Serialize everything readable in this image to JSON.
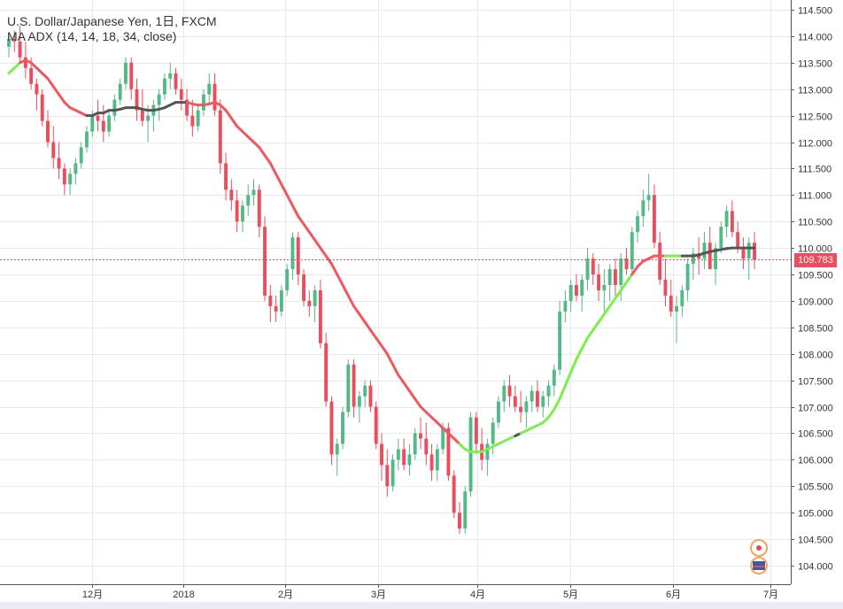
{
  "chart_data": {
    "type": "candlestick",
    "title": "U.S. Dollar/Japanese Yen, 1日, FXCM",
    "indicator": "MA ADX (14, 14, 18, 34, close)",
    "last_price": "109.783",
    "ylim": [
      103.5,
      114.6
    ],
    "yticks": [
      "114.500",
      "114.000",
      "113.500",
      "113.000",
      "112.500",
      "112.000",
      "111.500",
      "111.000",
      "110.500",
      "110.000",
      "109.500",
      "109.000",
      "108.500",
      "108.000",
      "107.500",
      "107.000",
      "106.500",
      "106.000",
      "105.500",
      "105.000",
      "104.500",
      "104.000"
    ],
    "xticks": [
      "12月",
      "2018",
      "2月",
      "3月",
      "4月",
      "5月",
      "6月",
      "7月"
    ],
    "colors": {
      "up": "#53b987",
      "down": "#eb4d5c",
      "ma_down": "#f0575f",
      "ma_up": "#7cf04a",
      "ma_flat": "#555555",
      "price_line": "#eb4d5c",
      "grid": "#e6e9ee"
    },
    "candles": [
      [
        113.8,
        114.0,
        113.6,
        113.95
      ],
      [
        113.95,
        114.1,
        113.7,
        113.9
      ],
      [
        113.9,
        114.2,
        113.5,
        113.6
      ],
      [
        113.6,
        113.9,
        113.2,
        113.4
      ],
      [
        113.4,
        113.6,
        113.0,
        113.1
      ],
      [
        113.1,
        113.2,
        112.6,
        112.9
      ],
      [
        112.9,
        113.0,
        112.3,
        112.4
      ],
      [
        112.4,
        112.6,
        111.9,
        112.0
      ],
      [
        112.0,
        112.3,
        111.5,
        111.7
      ],
      [
        111.7,
        112.0,
        111.3,
        111.5
      ],
      [
        111.5,
        111.6,
        111.0,
        111.2
      ],
      [
        111.2,
        111.5,
        111.0,
        111.4
      ],
      [
        111.4,
        111.7,
        111.2,
        111.6
      ],
      [
        111.6,
        112.0,
        111.5,
        111.9
      ],
      [
        111.9,
        112.3,
        111.8,
        112.2
      ],
      [
        112.2,
        112.6,
        112.1,
        112.5
      ],
      [
        112.5,
        112.8,
        112.2,
        112.4
      ],
      [
        112.4,
        112.7,
        112.0,
        112.2
      ],
      [
        112.2,
        112.6,
        112.1,
        112.5
      ],
      [
        112.5,
        112.9,
        112.4,
        112.8
      ],
      [
        112.8,
        113.2,
        112.7,
        113.1
      ],
      [
        113.1,
        113.6,
        113.0,
        113.5
      ],
      [
        113.5,
        113.6,
        112.8,
        113.0
      ],
      [
        113.0,
        113.2,
        112.4,
        112.6
      ],
      [
        112.6,
        113.0,
        112.3,
        112.4
      ],
      [
        112.4,
        112.7,
        112.0,
        112.5
      ],
      [
        112.5,
        112.8,
        112.2,
        112.7
      ],
      [
        112.7,
        113.0,
        112.4,
        112.9
      ],
      [
        112.9,
        113.3,
        112.8,
        113.2
      ],
      [
        113.2,
        113.5,
        113.0,
        113.3
      ],
      [
        113.3,
        113.4,
        112.9,
        113.0
      ],
      [
        113.0,
        113.2,
        112.6,
        112.8
      ],
      [
        112.8,
        113.0,
        112.4,
        112.5
      ],
      [
        112.5,
        112.8,
        112.1,
        112.3
      ],
      [
        112.3,
        112.7,
        112.2,
        112.6
      ],
      [
        112.6,
        113.0,
        112.5,
        112.9
      ],
      [
        112.9,
        113.3,
        112.7,
        113.1
      ],
      [
        113.1,
        113.3,
        112.5,
        112.6
      ],
      [
        112.6,
        112.8,
        111.4,
        111.6
      ],
      [
        111.6,
        111.8,
        110.9,
        111.1
      ],
      [
        111.1,
        111.3,
        110.7,
        110.9
      ],
      [
        110.9,
        111.1,
        110.3,
        110.5
      ],
      [
        110.5,
        110.9,
        110.3,
        110.8
      ],
      [
        110.8,
        111.2,
        110.6,
        111.0
      ],
      [
        111.0,
        111.3,
        110.8,
        111.1
      ],
      [
        111.1,
        111.2,
        110.2,
        110.4
      ],
      [
        110.4,
        110.6,
        109.0,
        109.1
      ],
      [
        109.1,
        109.3,
        108.6,
        108.9
      ],
      [
        108.9,
        109.1,
        108.6,
        108.8
      ],
      [
        108.8,
        109.3,
        108.7,
        109.2
      ],
      [
        109.2,
        109.7,
        109.1,
        109.6
      ],
      [
        109.6,
        110.3,
        109.4,
        110.2
      ],
      [
        110.2,
        110.3,
        109.3,
        109.5
      ],
      [
        109.5,
        109.6,
        108.9,
        109.0
      ],
      [
        109.0,
        109.2,
        108.7,
        108.9
      ],
      [
        108.9,
        109.3,
        108.6,
        109.2
      ],
      [
        109.2,
        109.4,
        108.1,
        108.2
      ],
      [
        108.2,
        108.4,
        107.0,
        107.1
      ],
      [
        107.1,
        107.2,
        105.9,
        106.1
      ],
      [
        106.1,
        106.4,
        105.7,
        106.3
      ],
      [
        106.3,
        107.0,
        106.2,
        106.9
      ],
      [
        106.9,
        107.9,
        106.8,
        107.8
      ],
      [
        107.8,
        107.9,
        106.8,
        107.0
      ],
      [
        107.0,
        107.3,
        106.7,
        107.2
      ],
      [
        107.2,
        107.5,
        107.0,
        107.4
      ],
      [
        107.4,
        107.5,
        106.9,
        107.0
      ],
      [
        107.0,
        107.1,
        106.2,
        106.3
      ],
      [
        106.3,
        106.5,
        105.6,
        105.9
      ],
      [
        105.9,
        106.2,
        105.3,
        105.5
      ],
      [
        105.5,
        106.1,
        105.4,
        106.0
      ],
      [
        106.0,
        106.4,
        105.8,
        106.2
      ],
      [
        106.2,
        106.4,
        105.8,
        105.9
      ],
      [
        105.9,
        106.3,
        105.7,
        106.1
      ],
      [
        106.1,
        106.6,
        106.0,
        106.5
      ],
      [
        106.5,
        106.8,
        106.2,
        106.4
      ],
      [
        106.4,
        106.7,
        105.9,
        106.1
      ],
      [
        106.1,
        106.3,
        105.6,
        105.8
      ],
      [
        105.8,
        106.3,
        105.6,
        106.2
      ],
      [
        106.2,
        106.7,
        106.1,
        106.6
      ],
      [
        106.6,
        106.7,
        105.6,
        105.7
      ],
      [
        105.7,
        105.8,
        104.9,
        105.0
      ],
      [
        105.0,
        105.2,
        104.6,
        104.7
      ],
      [
        104.7,
        105.5,
        104.6,
        105.4
      ],
      [
        105.4,
        106.9,
        105.3,
        106.8
      ],
      [
        106.8,
        106.9,
        106.1,
        106.3
      ],
      [
        106.3,
        106.6,
        105.8,
        106.0
      ],
      [
        106.0,
        106.4,
        105.7,
        106.3
      ],
      [
        106.3,
        106.8,
        106.1,
        106.7
      ],
      [
        106.7,
        107.2,
        106.6,
        107.1
      ],
      [
        107.1,
        107.5,
        106.9,
        107.4
      ],
      [
        107.4,
        107.6,
        107.0,
        107.2
      ],
      [
        107.2,
        107.4,
        106.9,
        107.0
      ],
      [
        107.0,
        107.3,
        106.7,
        106.9
      ],
      [
        106.9,
        107.2,
        106.6,
        107.1
      ],
      [
        107.1,
        107.4,
        106.9,
        107.3
      ],
      [
        107.3,
        107.5,
        106.9,
        107.0
      ],
      [
        107.0,
        107.3,
        106.8,
        107.2
      ],
      [
        107.2,
        107.5,
        107.0,
        107.4
      ],
      [
        107.4,
        107.8,
        107.2,
        107.7
      ],
      [
        107.7,
        109.0,
        107.6,
        108.8
      ],
      [
        108.8,
        109.2,
        108.6,
        109.0
      ],
      [
        109.0,
        109.4,
        108.8,
        109.3
      ],
      [
        109.3,
        109.5,
        109.0,
        109.1
      ],
      [
        109.1,
        109.5,
        108.8,
        109.4
      ],
      [
        109.4,
        110.0,
        109.2,
        109.8
      ],
      [
        109.8,
        109.9,
        109.3,
        109.5
      ],
      [
        109.5,
        109.7,
        109.0,
        109.2
      ],
      [
        109.2,
        109.6,
        108.8,
        109.3
      ],
      [
        109.3,
        109.7,
        109.0,
        109.6
      ],
      [
        109.6,
        109.8,
        109.1,
        109.3
      ],
      [
        109.3,
        109.9,
        109.0,
        109.8
      ],
      [
        109.8,
        110.0,
        109.5,
        109.6
      ],
      [
        109.6,
        110.4,
        109.5,
        110.3
      ],
      [
        110.3,
        110.7,
        110.1,
        110.6
      ],
      [
        110.6,
        111.1,
        110.4,
        110.9
      ],
      [
        110.9,
        111.4,
        110.7,
        111.0
      ],
      [
        111.0,
        111.2,
        110.0,
        110.1
      ],
      [
        110.1,
        110.3,
        109.3,
        109.4
      ],
      [
        109.4,
        109.8,
        108.9,
        109.1
      ],
      [
        109.1,
        109.4,
        108.7,
        108.8
      ],
      [
        108.8,
        109.1,
        108.2,
        108.9
      ],
      [
        108.9,
        109.3,
        108.7,
        109.2
      ],
      [
        109.2,
        109.8,
        109.0,
        109.7
      ],
      [
        109.7,
        110.0,
        109.4,
        109.9
      ],
      [
        109.9,
        110.2,
        109.5,
        109.8
      ],
      [
        109.8,
        110.3,
        109.6,
        110.1
      ],
      [
        110.1,
        110.4,
        109.7,
        109.6
      ],
      [
        109.6,
        110.1,
        109.3,
        110.0
      ],
      [
        110.0,
        110.5,
        109.9,
        110.4
      ],
      [
        110.4,
        110.8,
        110.2,
        110.7
      ],
      [
        110.7,
        110.9,
        110.2,
        110.3
      ],
      [
        110.3,
        110.5,
        109.9,
        110.0
      ],
      [
        110.0,
        110.2,
        109.6,
        109.8
      ],
      [
        109.8,
        110.2,
        109.4,
        110.1
      ],
      [
        110.1,
        110.3,
        109.6,
        109.78
      ]
    ],
    "ma": [
      113.3,
      113.4,
      113.5,
      113.55,
      113.5,
      113.4,
      113.3,
      113.2,
      113.05,
      112.9,
      112.75,
      112.65,
      112.6,
      112.55,
      112.5,
      112.5,
      112.55,
      112.55,
      112.6,
      112.6,
      112.62,
      112.65,
      112.65,
      112.65,
      112.62,
      112.6,
      112.6,
      112.62,
      112.65,
      112.7,
      112.75,
      112.75,
      112.75,
      112.72,
      112.7,
      112.7,
      112.72,
      112.75,
      112.7,
      112.6,
      112.45,
      112.3,
      112.2,
      112.1,
      112.0,
      111.9,
      111.75,
      111.6,
      111.4,
      111.2,
      111.0,
      110.8,
      110.6,
      110.45,
      110.3,
      110.15,
      110.0,
      109.85,
      109.7,
      109.5,
      109.3,
      109.1,
      108.9,
      108.75,
      108.6,
      108.45,
      108.3,
      108.15,
      108.0,
      107.8,
      107.6,
      107.45,
      107.3,
      107.15,
      107.0,
      106.9,
      106.8,
      106.7,
      106.6,
      106.5,
      106.4,
      106.3,
      106.2,
      106.15,
      106.15,
      106.15,
      106.2,
      106.25,
      106.3,
      106.35,
      106.4,
      106.45,
      106.5,
      106.55,
      106.6,
      106.65,
      106.7,
      106.8,
      106.95,
      107.15,
      107.4,
      107.65,
      107.9,
      108.1,
      108.3,
      108.45,
      108.6,
      108.75,
      108.9,
      109.05,
      109.2,
      109.35,
      109.5,
      109.65,
      109.75,
      109.8,
      109.85,
      109.85,
      109.85,
      109.85,
      109.85,
      109.85,
      109.85,
      109.85,
      109.87,
      109.9,
      109.93,
      109.95,
      109.97,
      109.99,
      110.0,
      110.0,
      110.0,
      110.0,
      110.0
    ],
    "ma_state": [
      "g",
      "g",
      "g",
      "r",
      "r",
      "r",
      "r",
      "r",
      "r",
      "r",
      "r",
      "r",
      "r",
      "r",
      "r",
      "k",
      "k",
      "k",
      "k",
      "k",
      "k",
      "k",
      "k",
      "k",
      "k",
      "k",
      "k",
      "k",
      "k",
      "k",
      "k",
      "k",
      "k",
      "r",
      "r",
      "r",
      "r",
      "r",
      "r",
      "r",
      "r",
      "r",
      "r",
      "r",
      "r",
      "r",
      "r",
      "r",
      "r",
      "r",
      "r",
      "r",
      "r",
      "r",
      "r",
      "r",
      "r",
      "r",
      "r",
      "r",
      "r",
      "r",
      "r",
      "r",
      "r",
      "r",
      "r",
      "r",
      "r",
      "r",
      "r",
      "r",
      "r",
      "r",
      "r",
      "r",
      "r",
      "r",
      "r",
      "r",
      "r",
      "r",
      "g",
      "g",
      "g",
      "g",
      "g",
      "g",
      "g",
      "g",
      "g",
      "g",
      "k",
      "g",
      "g",
      "g",
      "g",
      "g",
      "g",
      "g",
      "g",
      "g",
      "g",
      "g",
      "g",
      "g",
      "g",
      "g",
      "g",
      "g",
      "g",
      "g",
      "g",
      "r",
      "r",
      "r",
      "r",
      "r",
      "r",
      "g",
      "g",
      "g",
      "k",
      "k",
      "k",
      "k",
      "k",
      "k",
      "k",
      "k",
      "k",
      "k",
      "k",
      "k",
      "k"
    ]
  }
}
